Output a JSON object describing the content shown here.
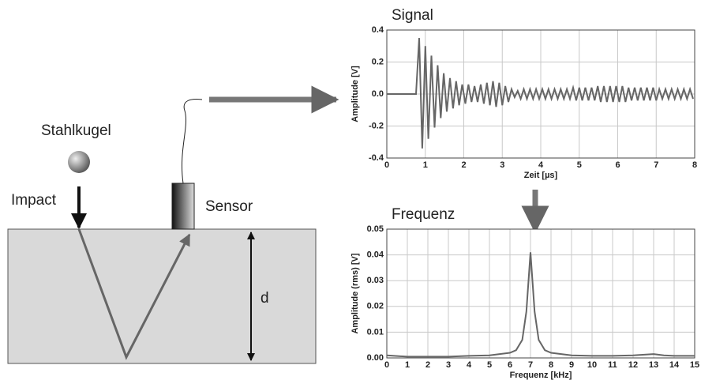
{
  "labels": {
    "ball": "Stahlkugel",
    "impact": "Impact",
    "sensor": "Sensor",
    "depth": "d"
  },
  "chart_data": [
    {
      "type": "line",
      "title": "Signal",
      "x_label": "Zeit [µs]",
      "y_label": "Amplitude [V]",
      "color": "#666666",
      "grid": true,
      "xlim": [
        0,
        8
      ],
      "ylim": [
        -0.4,
        0.4
      ],
      "xticks": [
        0,
        1,
        2,
        3,
        4,
        5,
        6,
        7,
        8
      ],
      "yticks": [
        -0.4,
        -0.2,
        {
          "value": 0,
          "label": "0.0"
        },
        0.2,
        0.4
      ],
      "x": [
        0,
        0.76,
        0.84,
        0.92,
        1.0,
        1.08,
        1.16,
        1.24,
        1.32,
        1.4,
        1.48,
        1.56,
        1.64,
        1.72,
        1.8,
        1.88,
        1.96,
        2.04,
        2.12,
        2.2,
        2.28,
        2.36,
        2.44,
        2.52,
        2.6,
        2.68,
        2.76,
        2.84,
        2.92,
        3.0,
        3.08,
        3.16,
        3.24,
        3.32,
        3.4,
        3.48,
        3.56,
        3.64,
        3.72,
        3.8,
        3.88,
        3.96,
        4.04,
        4.12,
        4.2,
        4.28,
        4.36,
        4.44,
        4.52,
        4.6,
        4.68,
        4.76,
        4.84,
        4.92,
        5.0,
        5.08,
        5.16,
        5.24,
        5.32,
        5.4,
        5.48,
        5.56,
        5.64,
        5.72,
        5.8,
        5.88,
        5.96,
        6.04,
        6.12,
        6.2,
        6.28,
        6.36,
        6.44,
        6.52,
        6.6,
        6.68,
        6.76,
        6.84,
        6.92,
        7.0,
        7.08,
        7.16,
        7.24,
        7.32,
        7.4,
        7.48,
        7.56,
        7.64,
        7.72,
        7.8,
        7.88,
        7.96
      ],
      "values": [
        0,
        0,
        0.35,
        -0.34,
        0.3,
        -0.28,
        0.24,
        -0.21,
        0.18,
        -0.15,
        0.13,
        -0.11,
        0.1,
        -0.09,
        0.08,
        -0.07,
        0.06,
        -0.06,
        0.06,
        -0.05,
        0.05,
        -0.05,
        0.06,
        -0.06,
        0.07,
        -0.07,
        0.08,
        -0.08,
        0.07,
        -0.07,
        0.05,
        -0.05,
        0.03,
        -0.02,
        0.02,
        -0.03,
        0.03,
        -0.03,
        0.03,
        -0.03,
        0.03,
        -0.03,
        0.03,
        -0.03,
        0.03,
        -0.03,
        0.03,
        -0.03,
        0.03,
        -0.03,
        0.03,
        -0.03,
        0.04,
        -0.04,
        0.04,
        -0.04,
        0.04,
        -0.04,
        0.04,
        -0.04,
        0.05,
        -0.05,
        0.05,
        -0.05,
        0.05,
        -0.05,
        0.05,
        -0.05,
        0.05,
        -0.05,
        0.04,
        -0.04,
        0.04,
        -0.04,
        0.04,
        -0.04,
        0.04,
        -0.04,
        0.04,
        -0.04,
        0.03,
        -0.03,
        0.03,
        -0.03,
        0.03,
        -0.03,
        0.03,
        -0.03,
        0.03,
        -0.03,
        0.03,
        -0.03
      ]
    },
    {
      "type": "line",
      "title": "Frequenz",
      "x_label": "Frequenz [kHz]",
      "y_label": "Amplitude (rms) [V]",
      "color": "#666666",
      "grid": true,
      "xlim": [
        0,
        15
      ],
      "ylim": [
        0,
        0.05
      ],
      "xticks": [
        0,
        1,
        2,
        3,
        4,
        5,
        6,
        7,
        8,
        9,
        10,
        11,
        12,
        13,
        14,
        15
      ],
      "yticks": [
        {
          "value": 0,
          "label": "0.00"
        },
        0.01,
        0.02,
        0.03,
        0.04,
        0.05
      ],
      "x": [
        0,
        1,
        2,
        3,
        4,
        5,
        5.5,
        6,
        6.3,
        6.6,
        6.8,
        7,
        7.2,
        7.4,
        7.7,
        8,
        9,
        10,
        11,
        12,
        13,
        13.5,
        14,
        15
      ],
      "values": [
        0.001,
        0.0005,
        0.0005,
        0.0005,
        0.0008,
        0.001,
        0.0015,
        0.002,
        0.003,
        0.007,
        0.018,
        0.041,
        0.018,
        0.007,
        0.003,
        0.002,
        0.001,
        0.0008,
        0.0008,
        0.001,
        0.0015,
        0.001,
        0.0008,
        0.0008
      ]
    }
  ]
}
